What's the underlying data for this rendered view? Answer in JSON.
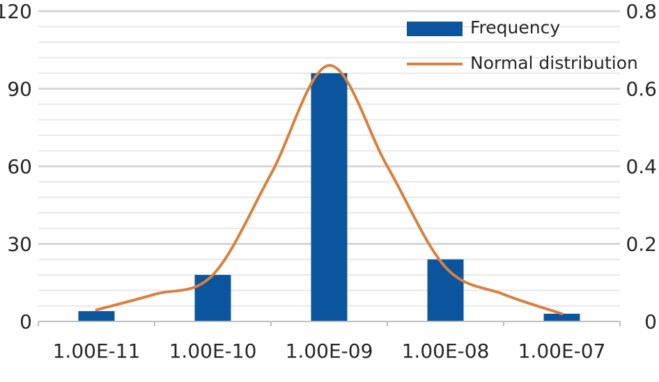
{
  "chart_data": {
    "type": "bar+line",
    "title": "",
    "xlabel": "",
    "ylabel": "",
    "categories": [
      "1.00E-11",
      "1.00E-10",
      "1.00E-09",
      "1.00E-08",
      "1.00E-07"
    ],
    "series": [
      {
        "name": "Frequency",
        "type": "bar",
        "axis": "left",
        "values": [
          4,
          18,
          96,
          24,
          3
        ],
        "color": "#0B559F"
      },
      {
        "name": "Normal distribution",
        "type": "line",
        "axis": "right",
        "smooth": true,
        "x": [
          0,
          0.5,
          1,
          1.5,
          2,
          2.5,
          3,
          3.5,
          4
        ],
        "values": [
          0.03,
          0.07,
          0.12,
          0.38,
          0.66,
          0.4,
          0.14,
          0.07,
          0.02
        ],
        "color": "#D9813C"
      }
    ],
    "y_left": {
      "min": 0,
      "max": 120,
      "ticks": [
        "0",
        "30",
        "60",
        "90",
        "120"
      ]
    },
    "y_right": {
      "min": 0,
      "max": 0.8,
      "ticks": [
        "0",
        "0.2",
        "0.4",
        "0.6",
        "0.8"
      ]
    },
    "grid": true,
    "legend_position": "top-right"
  }
}
